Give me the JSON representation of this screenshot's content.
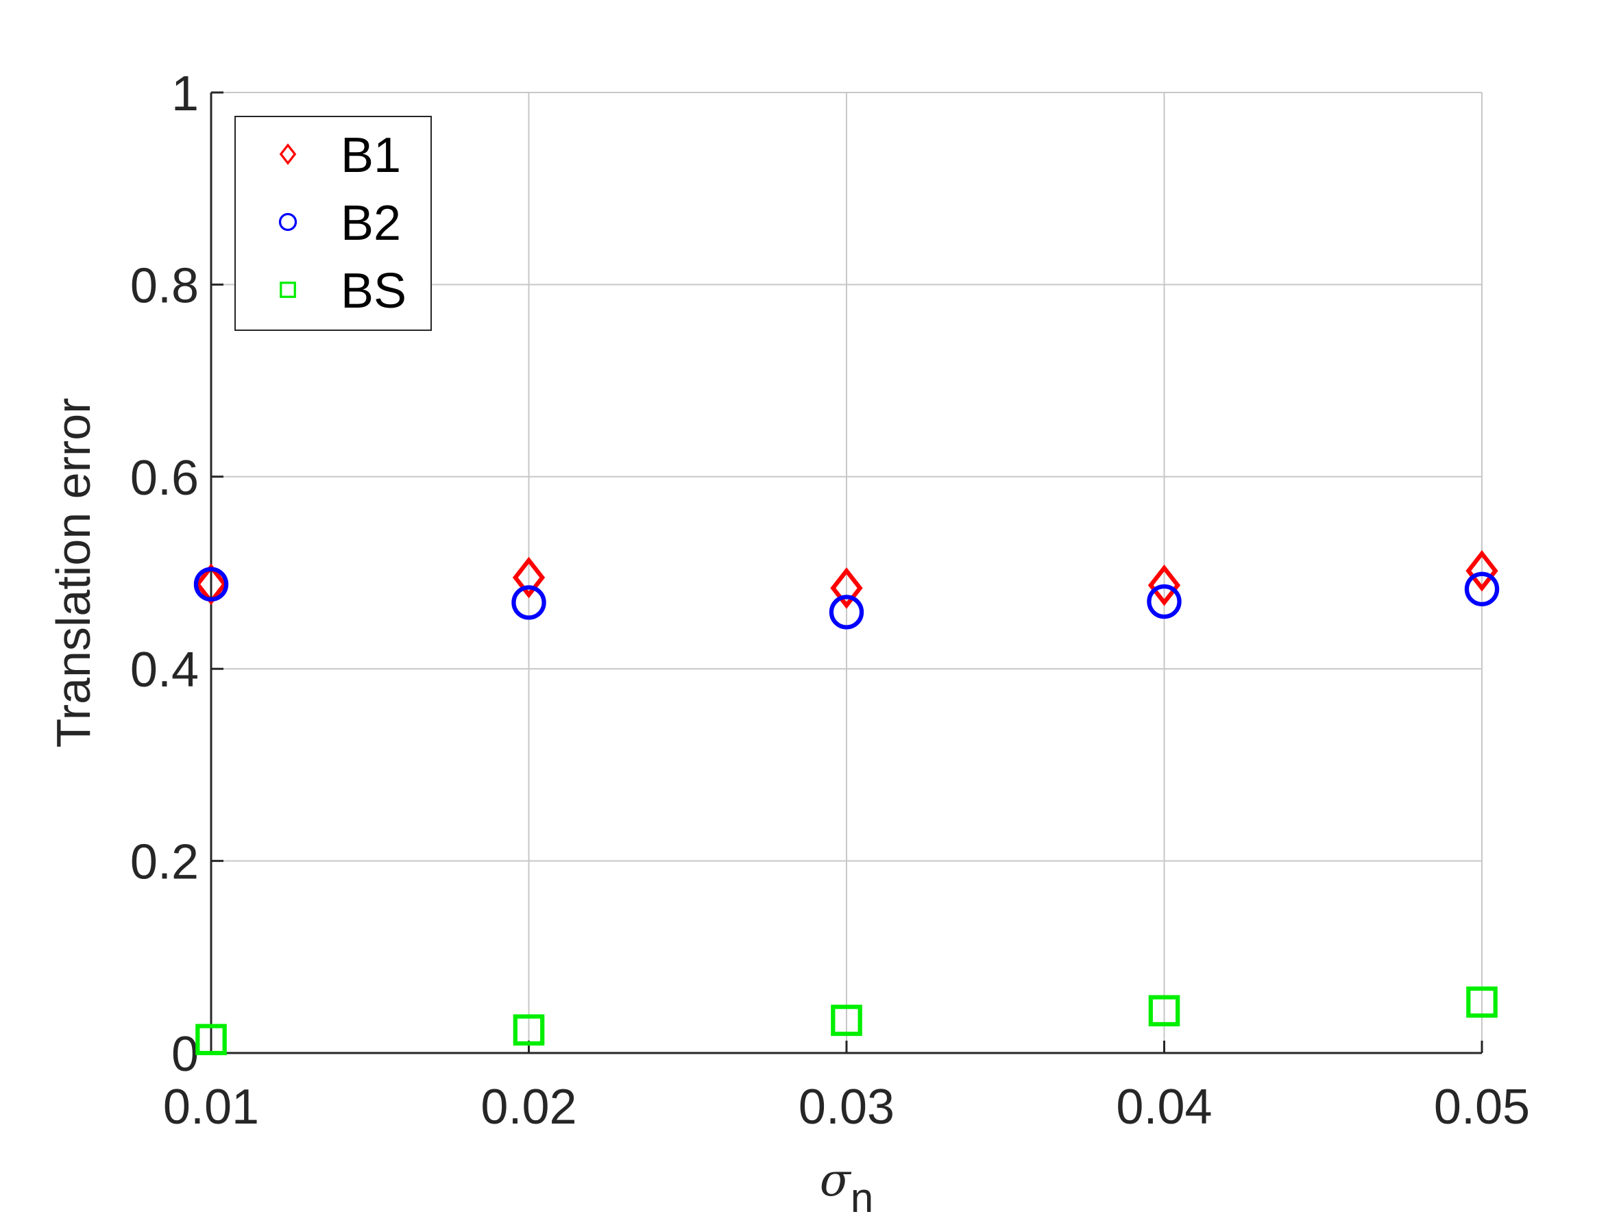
{
  "chart_data": {
    "type": "scatter",
    "x": [
      0.01,
      0.02,
      0.03,
      0.04,
      0.05
    ],
    "xlabel": "σ",
    "xlabel_subscript": "n",
    "ylabel": "Translation error",
    "xlim": [
      0.01,
      0.05
    ],
    "ylim": [
      0,
      1
    ],
    "xticks": [
      "0.01",
      "0.02",
      "0.03",
      "0.04",
      "0.05"
    ],
    "yticks": [
      "0",
      "0.2",
      "0.4",
      "0.6",
      "0.8",
      "1"
    ],
    "grid": true,
    "legend_position": "top-left",
    "series": [
      {
        "name": "B1",
        "marker": "diamond",
        "color": "#ff0000",
        "values": [
          0.488,
          0.495,
          0.484,
          0.487,
          0.502
        ]
      },
      {
        "name": "B2",
        "marker": "circle",
        "color": "#0000ff",
        "values": [
          0.488,
          0.469,
          0.459,
          0.47,
          0.483
        ]
      },
      {
        "name": "BS",
        "marker": "square",
        "color": "#00ee00",
        "values": [
          0.014,
          0.024,
          0.034,
          0.044,
          0.053
        ]
      }
    ]
  }
}
